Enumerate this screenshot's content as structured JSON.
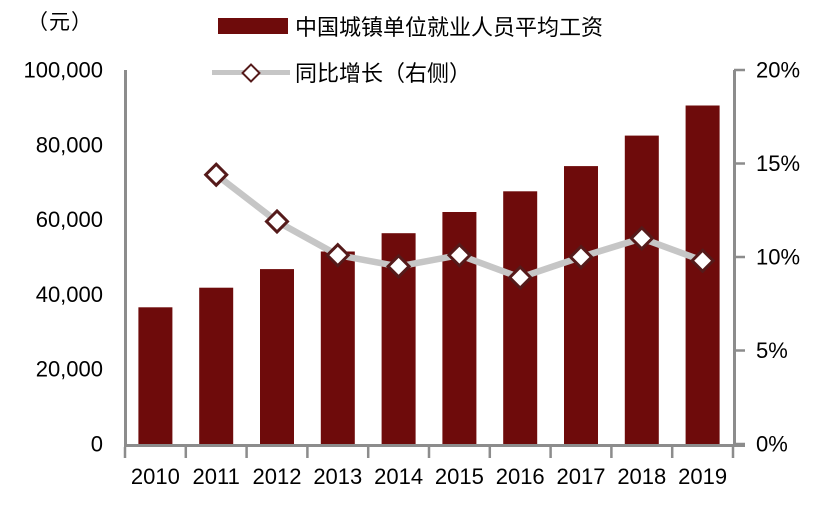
{
  "chart_data": {
    "type": "bar",
    "combo": "bar+line",
    "title": "",
    "unit_label": "（元）",
    "categories": [
      "2010",
      "2011",
      "2012",
      "2013",
      "2014",
      "2015",
      "2016",
      "2017",
      "2018",
      "2019"
    ],
    "series": [
      {
        "name": "中国城镇单位就业人员平均工资",
        "type": "bar",
        "axis": "left",
        "values": [
          36539,
          41799,
          46769,
          51483,
          56360,
          62029,
          67569,
          74318,
          82461,
          90501
        ],
        "color": "#6E0B0B"
      },
      {
        "name": "同比增长（右侧）",
        "type": "line",
        "axis": "right",
        "unit": "%",
        "values": [
          null,
          14.4,
          11.9,
          10.1,
          9.5,
          10.1,
          8.9,
          10.0,
          11.0,
          9.8
        ],
        "color": "#C6C6C6",
        "marker": "diamond",
        "marker_fill": "#FFFFFF",
        "marker_border": "#551A1A"
      }
    ],
    "left_axis": {
      "min": 0,
      "max": 100000,
      "tick_values": [
        0,
        20000,
        40000,
        60000,
        80000,
        100000
      ],
      "tick_labels": [
        "0",
        "20,000",
        "40,000",
        "60,000",
        "80,000",
        "100,000"
      ]
    },
    "right_axis": {
      "min": 0,
      "max": 20,
      "tick_values": [
        0,
        5,
        10,
        15,
        20
      ],
      "tick_labels": [
        "0%",
        "5%",
        "10%",
        "15%",
        "20%"
      ]
    },
    "legend_position": "top",
    "grid": false
  },
  "colors": {
    "bar": "#6E0B0B",
    "line": "#C6C6C6",
    "marker_fill": "#FFFFFF",
    "marker_border": "#551A1A",
    "axis": "#8C8C8C",
    "text": "#000000"
  }
}
